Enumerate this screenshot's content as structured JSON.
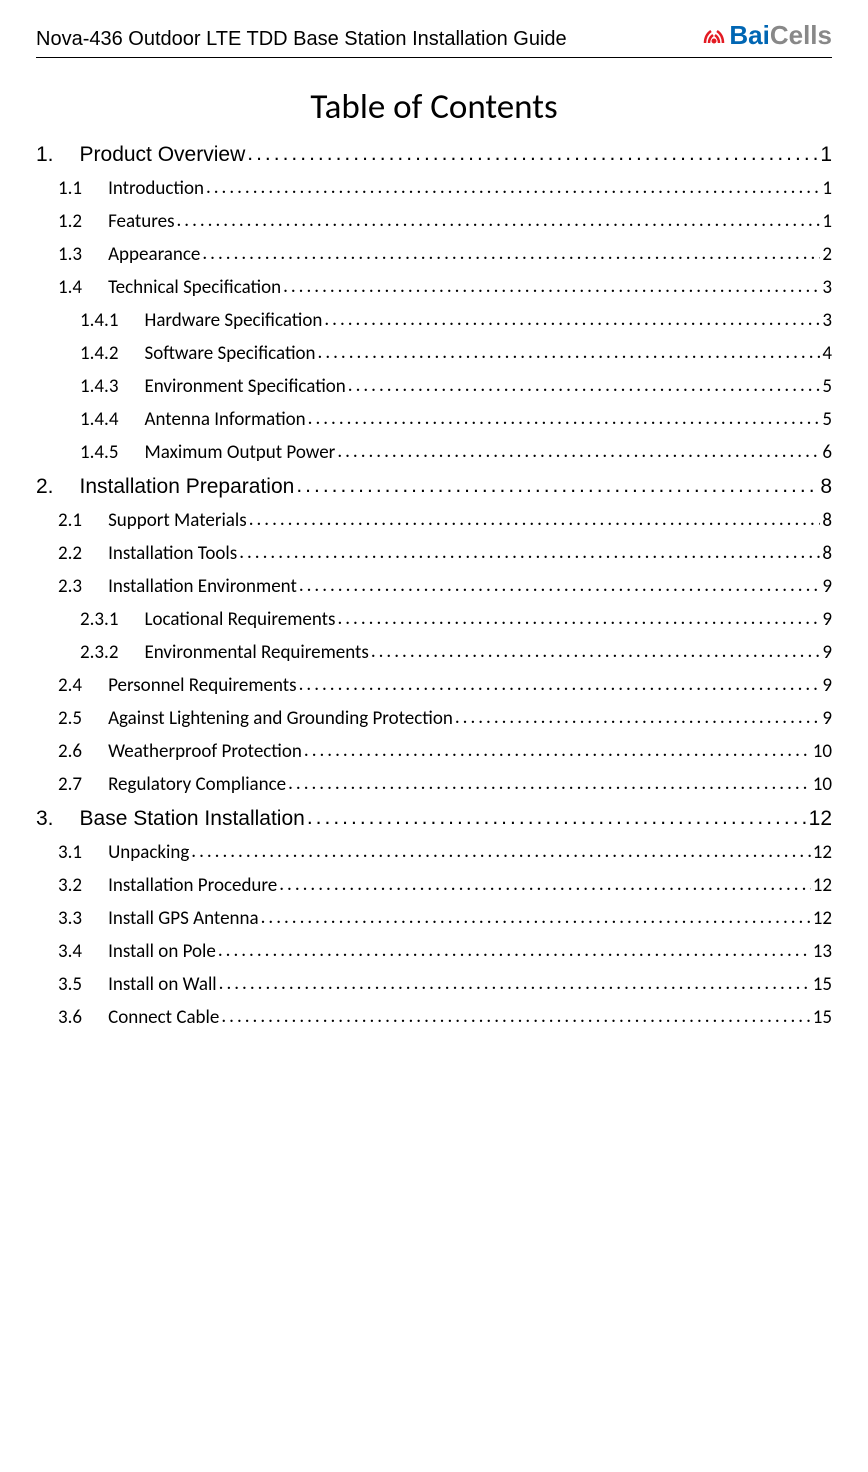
{
  "header": {
    "title": "Nova-436 Outdoor LTE TDD Base Station Installation Guide",
    "logo": {
      "brand_part1": "Bai",
      "brand_part2": "Cells",
      "color_part1": "#0066b3",
      "color_part2": "#888888",
      "icon_color": "#e31b23"
    }
  },
  "toc": {
    "title": "Table of Contents",
    "entries": [
      {
        "level": 1,
        "num": "1.",
        "label": "Product Overview",
        "page": "1"
      },
      {
        "level": 2,
        "num": "1.1",
        "label": "Introduction",
        "page": "1"
      },
      {
        "level": 2,
        "num": "1.2",
        "label": "Features",
        "page": "1"
      },
      {
        "level": 2,
        "num": "1.3",
        "label": "Appearance",
        "page": "2"
      },
      {
        "level": 2,
        "num": "1.4",
        "label": "Technical Specification",
        "page": "3"
      },
      {
        "level": 3,
        "num": "1.4.1",
        "label": "Hardware Specification",
        "page": "3"
      },
      {
        "level": 3,
        "num": "1.4.2",
        "label": "Software Specification",
        "page": "4"
      },
      {
        "level": 3,
        "num": "1.4.3",
        "label": "Environment Specification",
        "page": "5"
      },
      {
        "level": 3,
        "num": "1.4.4",
        "label": "Antenna Information",
        "page": "5"
      },
      {
        "level": 3,
        "num": "1.4.5",
        "label": "Maximum Output Power",
        "page": "6"
      },
      {
        "level": 1,
        "num": "2.",
        "label": "Installation Preparation",
        "page": "8"
      },
      {
        "level": 2,
        "num": "2.1",
        "label": "Support Materials",
        "page": "8"
      },
      {
        "level": 2,
        "num": "2.2",
        "label": "Installation Tools",
        "page": "8"
      },
      {
        "level": 2,
        "num": "2.3",
        "label": "Installation Environment",
        "page": "9"
      },
      {
        "level": 3,
        "num": "2.3.1",
        "label": "Locational Requirements",
        "page": "9"
      },
      {
        "level": 3,
        "num": "2.3.2",
        "label": "Environmental Requirements",
        "page": "9"
      },
      {
        "level": 2,
        "num": "2.4",
        "label": "Personnel Requirements",
        "page": "9"
      },
      {
        "level": 2,
        "num": "2.5",
        "label": "Against Lightening and Grounding Protection",
        "page": "9"
      },
      {
        "level": 2,
        "num": "2.6",
        "label": "Weatherproof Protection",
        "page": "10"
      },
      {
        "level": 2,
        "num": "2.7",
        "label": "Regulatory Compliance",
        "page": "10"
      },
      {
        "level": 1,
        "num": "3.",
        "label": "Base Station Installation",
        "page": "12"
      },
      {
        "level": 2,
        "num": "3.1",
        "label": "Unpacking",
        "page": "12"
      },
      {
        "level": 2,
        "num": "3.2",
        "label": "Installation Procedure",
        "page": "12"
      },
      {
        "level": 2,
        "num": "3.3",
        "label": "Install GPS Antenna",
        "page": "12"
      },
      {
        "level": 2,
        "num": "3.4",
        "label": "Install on Pole",
        "page": "13"
      },
      {
        "level": 2,
        "num": "3.5",
        "label": "Install on Wall",
        "page": "15"
      },
      {
        "level": 2,
        "num": "3.6",
        "label": "Connect Cable",
        "page": "15"
      }
    ]
  }
}
